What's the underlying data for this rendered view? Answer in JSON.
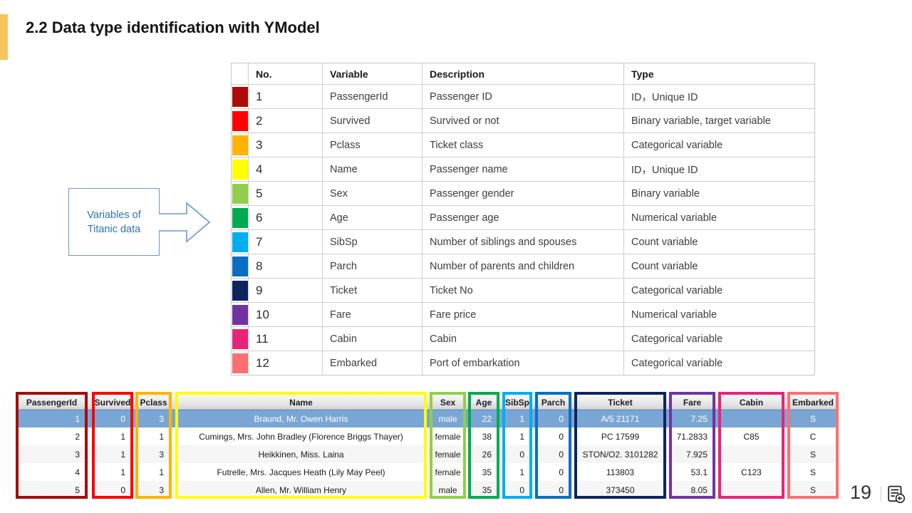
{
  "slide": {
    "title": "2.2 Data type identification with YModel",
    "accent_color": "#F5C45E"
  },
  "callout": {
    "text": "Variables of Titanic data",
    "border_color": "#6A96D8",
    "arrow_icon": "right-block-arrow-icon"
  },
  "variables_table": {
    "headers": [
      "No.",
      "Variable",
      "Description",
      "Type"
    ],
    "rows": [
      {
        "no": "1",
        "color": "#B00B0B",
        "variable": "PassengerId",
        "description": "Passenger ID",
        "type": "ID，Unique ID"
      },
      {
        "no": "2",
        "color": "#FF0000",
        "variable": "Survived",
        "description": "Survived or not",
        "type": "Binary variable, target variable"
      },
      {
        "no": "3",
        "color": "#FFB400",
        "variable": "Pclass",
        "description": "Ticket class",
        "type": "Categorical variable"
      },
      {
        "no": "4",
        "color": "#FFFF00",
        "variable": "Name",
        "description": "Passenger name",
        "type": "ID，Unique ID"
      },
      {
        "no": "5",
        "color": "#92CE4B",
        "variable": "Sex",
        "description": "Passenger gender",
        "type": "Binary variable"
      },
      {
        "no": "6",
        "color": "#00AB50",
        "variable": "Age",
        "description": "Passenger age",
        "type": "Numerical variable"
      },
      {
        "no": "7",
        "color": "#00AEEF",
        "variable": "SibSp",
        "description": "Number of siblings and spouses",
        "type": "Count variable"
      },
      {
        "no": "8",
        "color": "#0A6FC2",
        "variable": "Parch",
        "description": "Number of parents and children",
        "type": "Count variable"
      },
      {
        "no": "9",
        "color": "#0E2460",
        "variable": "Ticket",
        "description": "Ticket No",
        "type": "Categorical variable"
      },
      {
        "no": "10",
        "color": "#7133A3",
        "variable": "Fare",
        "description": "Fare price",
        "type": "Numerical variable"
      },
      {
        "no": "11",
        "color": "#E82478",
        "variable": "Cabin",
        "description": "Cabin",
        "type": "Categorical variable"
      },
      {
        "no": "12",
        "color": "#FA7070",
        "variable": "Embarked",
        "description": "Port of embarkation",
        "type": "Categorical variable"
      }
    ]
  },
  "data_grid": {
    "selected_row_index": 0,
    "selected_row_color": "#7AA6D6",
    "columns": [
      {
        "name": "PassengerId",
        "color": "#A50D0D",
        "align": "right",
        "values": [
          "1",
          "2",
          "3",
          "4",
          "5"
        ]
      },
      {
        "name": "Survived",
        "color": "#FF0000",
        "align": "right",
        "values": [
          "0",
          "1",
          "1",
          "1",
          "0"
        ]
      },
      {
        "name": "Pclass",
        "color": "#FFB400",
        "align": "right",
        "values": [
          "3",
          "1",
          "3",
          "1",
          "3"
        ]
      },
      {
        "name": "Name",
        "color": "#FFFF00",
        "align": "center",
        "values": [
          "Braund, Mr. Owen Harris",
          "Cumings, Mrs. John Bradley (Florence Briggs Thayer)",
          "Heikkinen, Miss. Laina",
          "Futrelle, Mrs. Jacques Heath (Lily May Peel)",
          "Allen, Mr. William Henry"
        ]
      },
      {
        "name": "Sex",
        "color": "#92CE4B",
        "align": "center",
        "values": [
          "male",
          "female",
          "female",
          "female",
          "male"
        ]
      },
      {
        "name": "Age",
        "color": "#00AB50",
        "align": "right",
        "values": [
          "22",
          "38",
          "26",
          "35",
          "35"
        ]
      },
      {
        "name": "SibSp",
        "color": "#00AEEF",
        "align": "right",
        "values": [
          "1",
          "1",
          "0",
          "1",
          "0"
        ]
      },
      {
        "name": "Parch",
        "color": "#0A6FC2",
        "align": "right",
        "values": [
          "0",
          "0",
          "0",
          "0",
          "0"
        ]
      },
      {
        "name": "Ticket",
        "color": "#0E2460",
        "align": "center",
        "values": [
          "A/5 21171",
          "PC 17599",
          "STON/O2. 3101282",
          "113803",
          "373450"
        ]
      },
      {
        "name": "Fare",
        "color": "#7133A3",
        "align": "right",
        "values": [
          "7.25",
          "71.2833",
          "7.925",
          "53.1",
          "8.05"
        ]
      },
      {
        "name": "Cabin",
        "color": "#E82478",
        "align": "center",
        "values": [
          "",
          "C85",
          "",
          "C123",
          ""
        ]
      },
      {
        "name": "Embarked",
        "color": "#FA7070",
        "align": "center",
        "values": [
          "S",
          "C",
          "S",
          "S",
          "S"
        ]
      }
    ]
  },
  "footer": {
    "page_number": "19",
    "icon": "document-back-icon"
  }
}
